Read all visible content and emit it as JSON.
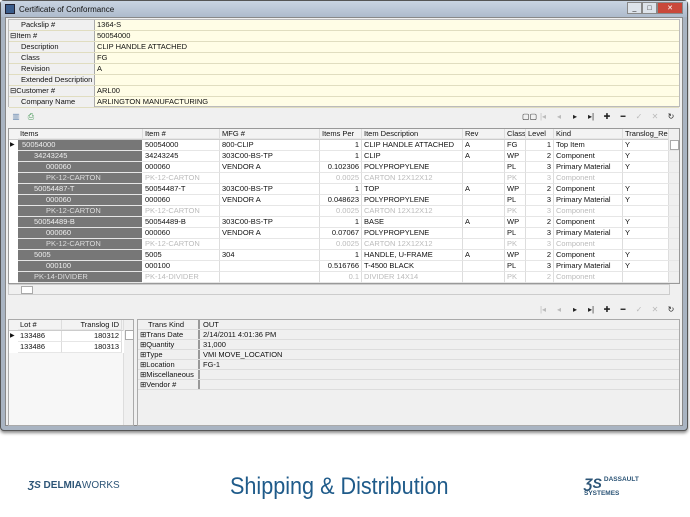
{
  "window": {
    "title": "Certificate of Conformance",
    "buttons": [
      "minimize",
      "maximize",
      "close"
    ]
  },
  "properties": [
    {
      "label": "Packslip #",
      "value": "1364-S",
      "group": false
    },
    {
      "label": "Item #",
      "value": "50054000",
      "group": true
    },
    {
      "label": "Description",
      "value": "CLIP HANDLE ATTACHED",
      "group": false
    },
    {
      "label": "Class",
      "value": "FG",
      "group": false
    },
    {
      "label": "Revision",
      "value": "A",
      "group": false
    },
    {
      "label": "Extended Description",
      "value": "",
      "group": false
    },
    {
      "label": "Customer #",
      "value": "ARL00",
      "group": true
    },
    {
      "label": "Company Name",
      "value": "ARLINGTON MANUFACTURING",
      "group": false
    }
  ],
  "toolbar": {
    "icons": [
      "delete-icon",
      "print-icon"
    ]
  },
  "navigator": {
    "icons": [
      "view-toggle-icon",
      "first-icon",
      "prior-icon",
      "next-icon",
      "last-icon",
      "insert-icon",
      "delete-icon",
      "post-icon",
      "cancel-icon",
      "refresh-icon"
    ]
  },
  "bom_grid": {
    "columns": [
      "Items",
      "Item #",
      "MFG #",
      "Items Per",
      "Item Description",
      "Rev",
      "Class",
      "Level",
      "Kind",
      "Translog_Rec_Exist"
    ],
    "rows": [
      {
        "items": "50054000",
        "item_no": "50054000",
        "mfg": "800-CLIP",
        "per": "1",
        "desc": "CLIP HANDLE ATTACHED",
        "rev": "A",
        "class": "FG",
        "level": "1",
        "kind": "Top Item",
        "translog": "Y",
        "disabled": false,
        "current": true
      },
      {
        "items": "34243245",
        "item_no": "34243245",
        "mfg": "303C00-BS-TP",
        "per": "1",
        "desc": "CLIP",
        "rev": "A",
        "class": "WP",
        "level": "2",
        "kind": "Component",
        "translog": "Y",
        "disabled": false
      },
      {
        "items": "000060",
        "item_no": "000060",
        "mfg": "VENDOR A",
        "per": "0.102306",
        "desc": "POLYPROPYLENE",
        "rev": "",
        "class": "PL",
        "level": "3",
        "kind": "Primary Material",
        "translog": "Y",
        "disabled": false
      },
      {
        "items": "PK-12-CARTON",
        "item_no": "PK-12-CARTON",
        "mfg": "",
        "per": "0.0025",
        "desc": "CARTON 12X12X12",
        "rev": "",
        "class": "PK",
        "level": "3",
        "kind": "Component",
        "translog": "",
        "disabled": true
      },
      {
        "items": "50054487-T",
        "item_no": "50054487-T",
        "mfg": "303C00-BS-TP",
        "per": "1",
        "desc": "TOP",
        "rev": "A",
        "class": "WP",
        "level": "2",
        "kind": "Component",
        "translog": "Y",
        "disabled": false
      },
      {
        "items": "000060",
        "item_no": "000060",
        "mfg": "VENDOR A",
        "per": "0.048623",
        "desc": "POLYPROPYLENE",
        "rev": "",
        "class": "PL",
        "level": "3",
        "kind": "Primary Material",
        "translog": "Y",
        "disabled": false
      },
      {
        "items": "PK-12-CARTON",
        "item_no": "PK-12-CARTON",
        "mfg": "",
        "per": "0.0025",
        "desc": "CARTON 12X12X12",
        "rev": "",
        "class": "PK",
        "level": "3",
        "kind": "Component",
        "translog": "",
        "disabled": true
      },
      {
        "items": "50054489-B",
        "item_no": "50054489-B",
        "mfg": "303C00-BS-TP",
        "per": "1",
        "desc": "BASE",
        "rev": "A",
        "class": "WP",
        "level": "2",
        "kind": "Component",
        "translog": "Y",
        "disabled": false
      },
      {
        "items": "000060",
        "item_no": "000060",
        "mfg": "VENDOR A",
        "per": "0.07067",
        "desc": "POLYPROPYLENE",
        "rev": "",
        "class": "PL",
        "level": "3",
        "kind": "Primary Material",
        "translog": "Y",
        "disabled": false
      },
      {
        "items": "PK-12-CARTON",
        "item_no": "PK-12-CARTON",
        "mfg": "",
        "per": "0.0025",
        "desc": "CARTON 12X12X12",
        "rev": "",
        "class": "PK",
        "level": "3",
        "kind": "Component",
        "translog": "",
        "disabled": true
      },
      {
        "items": "5005",
        "item_no": "5005",
        "mfg": "304",
        "per": "1",
        "desc": "HANDLE, U-FRAME",
        "rev": "A",
        "class": "WP",
        "level": "2",
        "kind": "Component",
        "translog": "Y",
        "disabled": false
      },
      {
        "items": "000100",
        "item_no": "000100",
        "mfg": "",
        "per": "0.516766",
        "desc": "T-4500 BLACK",
        "rev": "",
        "class": "PL",
        "level": "3",
        "kind": "Primary Material",
        "translog": "Y",
        "disabled": false
      },
      {
        "items": "PK-14-DIVIDER",
        "item_no": "PK-14-DIVIDER",
        "mfg": "",
        "per": "0.1",
        "desc": "DIVIDER 14X14",
        "rev": "",
        "class": "PK",
        "level": "2",
        "kind": "Component",
        "translog": "",
        "disabled": true
      }
    ]
  },
  "lots": {
    "columns": [
      "Lot #",
      "Translog ID"
    ],
    "rows": [
      {
        "lot": "133486",
        "id": "180312"
      },
      {
        "lot": "133486",
        "id": "180313"
      }
    ]
  },
  "details": [
    {
      "label": "Trans Kind",
      "value": "OUT",
      "expandable": false
    },
    {
      "label": "Trans Date",
      "value": "2/14/2011 4:01:36 PM",
      "expandable": true
    },
    {
      "label": "Quantity",
      "value": "31,000",
      "expandable": true
    },
    {
      "label": "Type",
      "value": "VMI MOVE_LOCATION",
      "expandable": true
    },
    {
      "label": "Location",
      "value": "FG-1",
      "expandable": true
    },
    {
      "label": "Miscellaneous",
      "value": "",
      "expandable": true
    },
    {
      "label": "Vendor #",
      "value": "",
      "expandable": true
    }
  ],
  "footer": {
    "title": "Shipping & Distribution",
    "logo_left": "DELMIAWORKS",
    "logo_right": "DASSAULT SYSTEMES"
  }
}
